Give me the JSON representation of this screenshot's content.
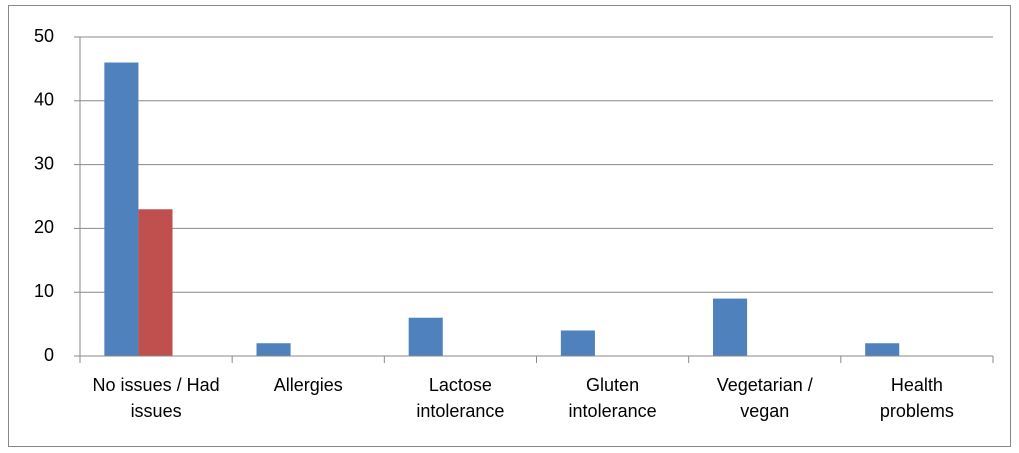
{
  "chart_data": {
    "type": "bar",
    "categories": [
      "No issues / Had issues",
      "Allergies",
      "Lactose intolerance",
      "Gluten intolerance",
      "Vegetarian / vegan",
      "Health problems"
    ],
    "series": [
      {
        "color": "#4f81bd",
        "values": [
          46,
          2,
          6,
          4,
          9,
          2
        ]
      },
      {
        "color": "#c0504d",
        "values": [
          23,
          null,
          null,
          null,
          null,
          null
        ]
      }
    ],
    "ylim": [
      0,
      50
    ],
    "yticks": [
      0,
      10,
      20,
      30,
      40,
      50
    ],
    "grid": true
  }
}
